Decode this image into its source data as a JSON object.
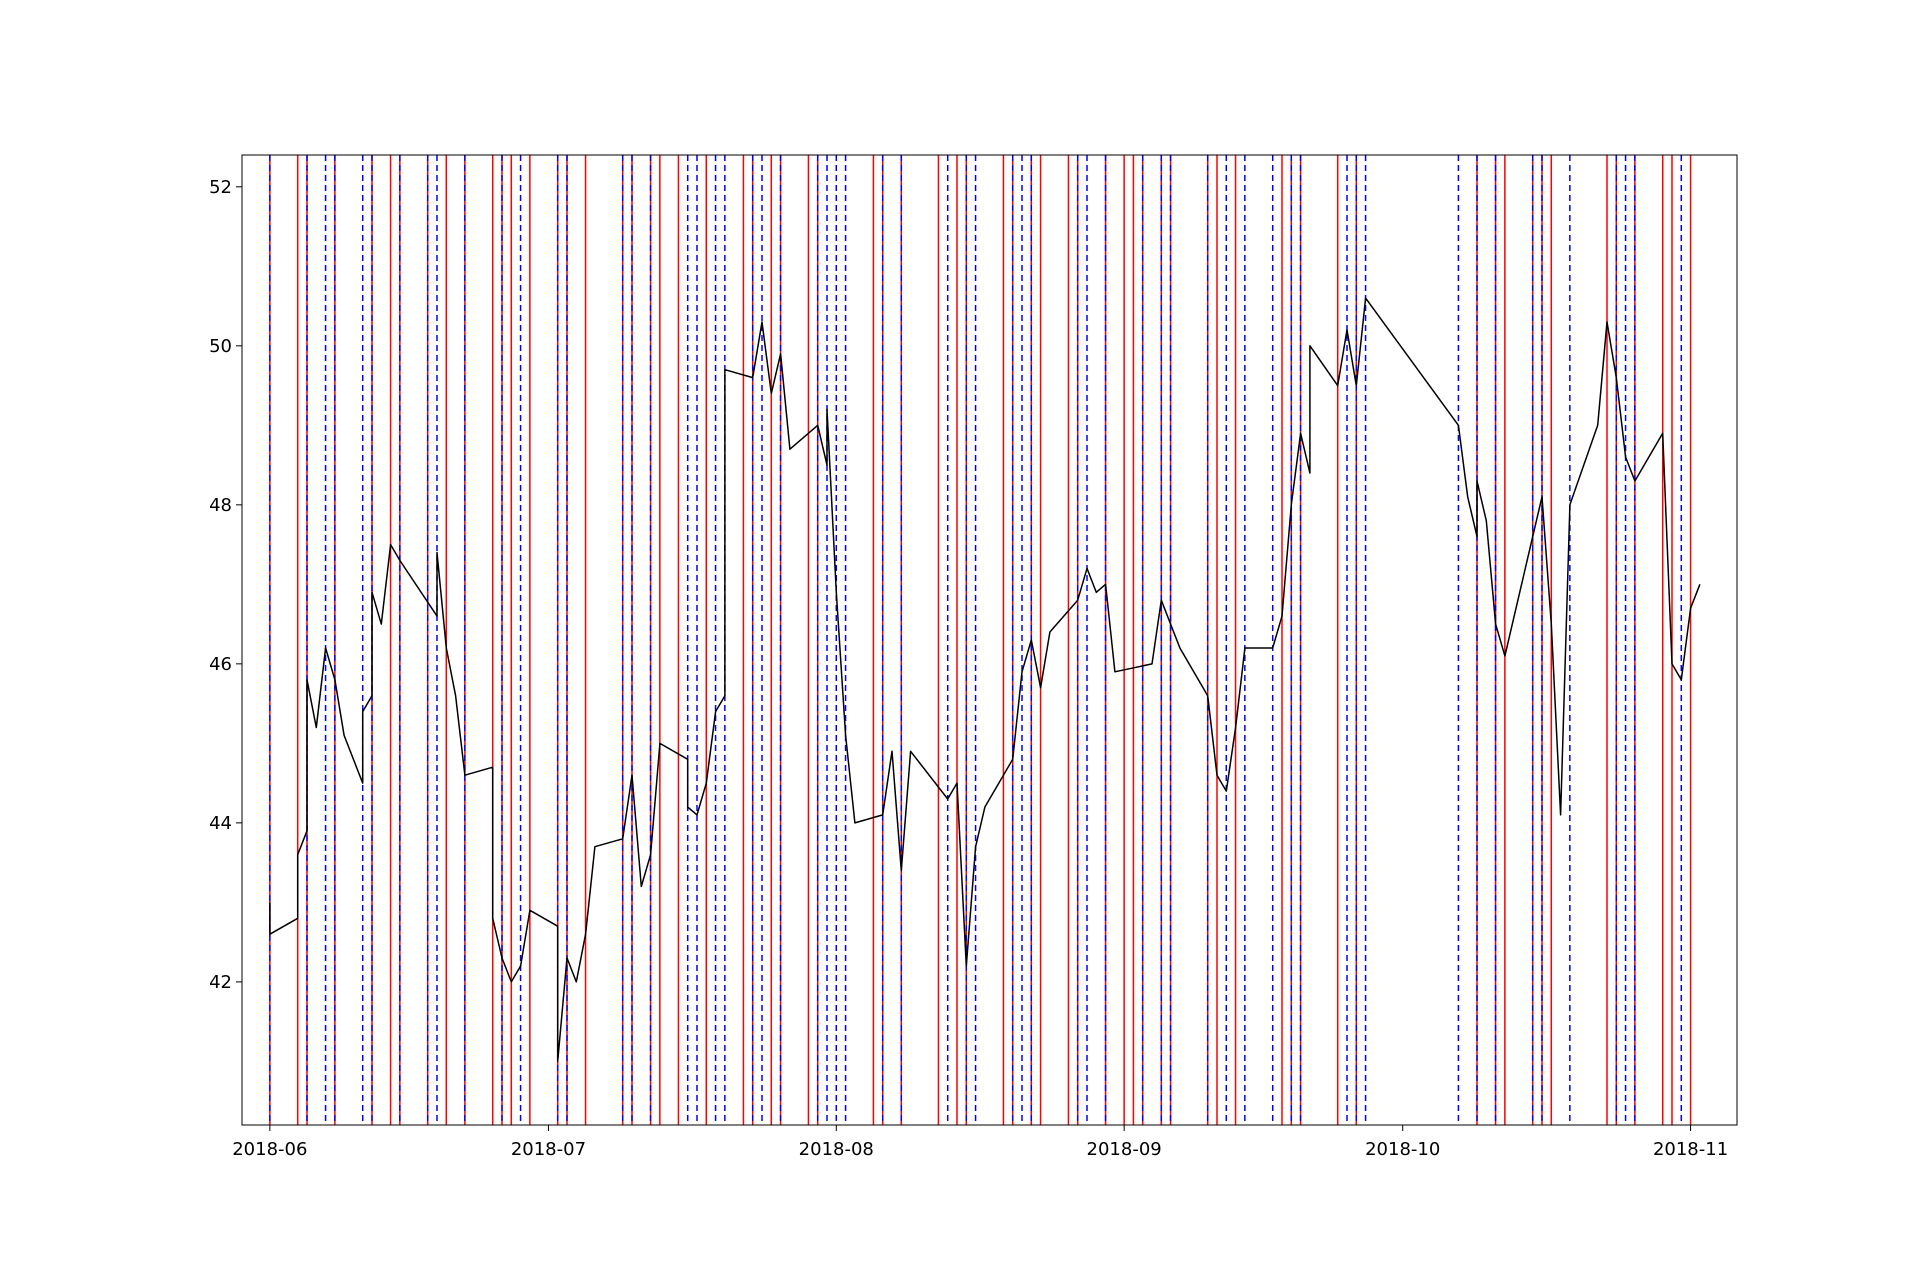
{
  "chart_data": {
    "type": "line",
    "title": "",
    "xlabel": "",
    "ylabel": "",
    "xlim": [
      "2018-05-29",
      "2018-11-06"
    ],
    "ylim": [
      40.2,
      52.4
    ],
    "grid": false,
    "colors": {
      "price": "#000000",
      "solid_lines": "#ff0000",
      "dashed_lines": "#0000ff"
    },
    "x_ticks": [
      {
        "date": "2018-06-01",
        "label": "2018-06"
      },
      {
        "date": "2018-07-01",
        "label": "2018-07"
      },
      {
        "date": "2018-08-01",
        "label": "2018-08"
      },
      {
        "date": "2018-09-01",
        "label": "2018-09"
      },
      {
        "date": "2018-10-01",
        "label": "2018-10"
      },
      {
        "date": "2018-11-01",
        "label": "2018-11"
      }
    ],
    "y_ticks": [
      {
        "value": 42,
        "label": "42"
      },
      {
        "value": 44,
        "label": "44"
      },
      {
        "value": 46,
        "label": "46"
      },
      {
        "value": 48,
        "label": "48"
      },
      {
        "value": 50,
        "label": "50"
      },
      {
        "value": 52,
        "label": "52"
      }
    ],
    "series": [
      {
        "style": "line",
        "points": [
          [
            "2018-06-01",
            43.0
          ],
          [
            "2018-06-01",
            42.6
          ],
          [
            "2018-06-04",
            42.8
          ],
          [
            "2018-06-04",
            43.6
          ],
          [
            "2018-06-05",
            43.9
          ],
          [
            "2018-06-05",
            45.8
          ],
          [
            "2018-06-06",
            45.2
          ],
          [
            "2018-06-07",
            46.2
          ],
          [
            "2018-06-08",
            45.8
          ],
          [
            "2018-06-09",
            45.1
          ],
          [
            "2018-06-11",
            44.5
          ],
          [
            "2018-06-11",
            45.4
          ],
          [
            "2018-06-12",
            45.6
          ],
          [
            "2018-06-12",
            46.9
          ],
          [
            "2018-06-13",
            46.5
          ],
          [
            "2018-06-14",
            47.5
          ],
          [
            "2018-06-15",
            47.3
          ],
          [
            "2018-06-19",
            46.6
          ],
          [
            "2018-06-19",
            47.4
          ],
          [
            "2018-06-20",
            46.2
          ],
          [
            "2018-06-21",
            45.6
          ],
          [
            "2018-06-22",
            44.6
          ],
          [
            "2018-06-25",
            44.7
          ],
          [
            "2018-06-25",
            42.8
          ],
          [
            "2018-06-26",
            42.3
          ],
          [
            "2018-06-27",
            42.0
          ],
          [
            "2018-06-28",
            42.2
          ],
          [
            "2018-06-29",
            42.9
          ],
          [
            "2018-07-02",
            42.7
          ],
          [
            "2018-07-02",
            41.0
          ],
          [
            "2018-07-03",
            42.3
          ],
          [
            "2018-07-04",
            42.0
          ],
          [
            "2018-07-05",
            42.6
          ],
          [
            "2018-07-06",
            43.7
          ],
          [
            "2018-07-09",
            43.8
          ],
          [
            "2018-07-10",
            44.6
          ],
          [
            "2018-07-11",
            43.2
          ],
          [
            "2018-07-12",
            43.6
          ],
          [
            "2018-07-13",
            45.0
          ],
          [
            "2018-07-16",
            44.8
          ],
          [
            "2018-07-16",
            44.2
          ],
          [
            "2018-07-17",
            44.1
          ],
          [
            "2018-07-18",
            44.5
          ],
          [
            "2018-07-19",
            45.4
          ],
          [
            "2018-07-20",
            45.6
          ],
          [
            "2018-07-20",
            49.7
          ],
          [
            "2018-07-23",
            49.6
          ],
          [
            "2018-07-24",
            50.3
          ],
          [
            "2018-07-25",
            49.4
          ],
          [
            "2018-07-26",
            49.9
          ],
          [
            "2018-07-27",
            48.7
          ],
          [
            "2018-07-30",
            49.0
          ],
          [
            "2018-07-31",
            48.5
          ],
          [
            "2018-07-31",
            49.2
          ],
          [
            "2018-08-01",
            46.9
          ],
          [
            "2018-08-02",
            45.1
          ],
          [
            "2018-08-03",
            44.0
          ],
          [
            "2018-08-06",
            44.1
          ],
          [
            "2018-08-07",
            44.9
          ],
          [
            "2018-08-08",
            43.4
          ],
          [
            "2018-08-09",
            44.9
          ],
          [
            "2018-08-13",
            44.3
          ],
          [
            "2018-08-14",
            44.5
          ],
          [
            "2018-08-15",
            42.2
          ],
          [
            "2018-08-16",
            43.7
          ],
          [
            "2018-08-17",
            44.2
          ],
          [
            "2018-08-20",
            44.8
          ],
          [
            "2018-08-21",
            45.9
          ],
          [
            "2018-08-22",
            46.3
          ],
          [
            "2018-08-23",
            45.7
          ],
          [
            "2018-08-24",
            46.4
          ],
          [
            "2018-08-27",
            46.8
          ],
          [
            "2018-08-28",
            47.2
          ],
          [
            "2018-08-29",
            46.9
          ],
          [
            "2018-08-30",
            47.0
          ],
          [
            "2018-08-31",
            45.9
          ],
          [
            "2018-09-04",
            46.0
          ],
          [
            "2018-09-05",
            46.8
          ],
          [
            "2018-09-06",
            46.5
          ],
          [
            "2018-09-07",
            46.2
          ],
          [
            "2018-09-10",
            45.6
          ],
          [
            "2018-09-11",
            44.6
          ],
          [
            "2018-09-12",
            44.4
          ],
          [
            "2018-09-13",
            45.2
          ],
          [
            "2018-09-14",
            46.2
          ],
          [
            "2018-09-17",
            46.2
          ],
          [
            "2018-09-18",
            46.6
          ],
          [
            "2018-09-19",
            48.0
          ],
          [
            "2018-09-20",
            48.9
          ],
          [
            "2018-09-21",
            48.4
          ],
          [
            "2018-09-21",
            50.0
          ],
          [
            "2018-09-24",
            49.5
          ],
          [
            "2018-09-25",
            50.2
          ],
          [
            "2018-09-26",
            49.5
          ],
          [
            "2018-09-27",
            50.6
          ],
          [
            "2018-10-07",
            49.0
          ],
          [
            "2018-10-08",
            48.1
          ],
          [
            "2018-10-09",
            47.6
          ],
          [
            "2018-10-09",
            48.3
          ],
          [
            "2018-10-10",
            47.8
          ],
          [
            "2018-10-11",
            46.5
          ],
          [
            "2018-10-12",
            46.1
          ],
          [
            "2018-10-15",
            47.6
          ],
          [
            "2018-10-16",
            48.1
          ],
          [
            "2018-10-17",
            46.5
          ],
          [
            "2018-10-18",
            44.1
          ],
          [
            "2018-10-19",
            48.0
          ],
          [
            "2018-10-22",
            49.0
          ],
          [
            "2018-10-23",
            50.3
          ],
          [
            "2018-10-24",
            49.6
          ],
          [
            "2018-10-25",
            48.6
          ],
          [
            "2018-10-26",
            48.3
          ],
          [
            "2018-10-29",
            48.9
          ],
          [
            "2018-10-30",
            46.0
          ],
          [
            "2018-10-31",
            45.8
          ],
          [
            "2018-11-01",
            46.7
          ],
          [
            "2018-11-02",
            47.0
          ]
        ]
      }
    ],
    "vertical_lines_solid_red": [
      "2018-06-01",
      "2018-06-04",
      "2018-06-05",
      "2018-06-08",
      "2018-06-12",
      "2018-06-14",
      "2018-06-15",
      "2018-06-18",
      "2018-06-20",
      "2018-06-22",
      "2018-06-25",
      "2018-06-26",
      "2018-06-27",
      "2018-06-29",
      "2018-07-02",
      "2018-07-03",
      "2018-07-05",
      "2018-07-09",
      "2018-07-10",
      "2018-07-12",
      "2018-07-13",
      "2018-07-15",
      "2018-07-18",
      "2018-07-22",
      "2018-07-23",
      "2018-07-25",
      "2018-07-26",
      "2018-07-29",
      "2018-07-30",
      "2018-08-05",
      "2018-08-06",
      "2018-08-08",
      "2018-08-12",
      "2018-08-14",
      "2018-08-15",
      "2018-08-19",
      "2018-08-20",
      "2018-08-22",
      "2018-08-23",
      "2018-08-26",
      "2018-08-27",
      "2018-08-30",
      "2018-09-01",
      "2018-09-02",
      "2018-09-03",
      "2018-09-05",
      "2018-09-06",
      "2018-09-10",
      "2018-09-11",
      "2018-09-13",
      "2018-09-18",
      "2018-09-19",
      "2018-09-20",
      "2018-09-24",
      "2018-09-26",
      "2018-10-09",
      "2018-10-11",
      "2018-10-12",
      "2018-10-15",
      "2018-10-16",
      "2018-10-17",
      "2018-10-23",
      "2018-10-24",
      "2018-10-26",
      "2018-10-29",
      "2018-10-30",
      "2018-11-01"
    ],
    "vertical_lines_dashed_blue": [
      "2018-06-01",
      "2018-06-05",
      "2018-06-07",
      "2018-06-08",
      "2018-06-11",
      "2018-06-12",
      "2018-06-15",
      "2018-06-18",
      "2018-06-19",
      "2018-06-22",
      "2018-06-26",
      "2018-06-28",
      "2018-07-02",
      "2018-07-03",
      "2018-07-09",
      "2018-07-10",
      "2018-07-12",
      "2018-07-16",
      "2018-07-17",
      "2018-07-19",
      "2018-07-20",
      "2018-07-23",
      "2018-07-24",
      "2018-07-26",
      "2018-07-30",
      "2018-07-31",
      "2018-08-01",
      "2018-08-02",
      "2018-08-06",
      "2018-08-08",
      "2018-08-13",
      "2018-08-15",
      "2018-08-16",
      "2018-08-20",
      "2018-08-21",
      "2018-08-22",
      "2018-08-27",
      "2018-08-28",
      "2018-08-30",
      "2018-09-03",
      "2018-09-05",
      "2018-09-06",
      "2018-09-10",
      "2018-09-12",
      "2018-09-14",
      "2018-09-17",
      "2018-09-19",
      "2018-09-20",
      "2018-09-25",
      "2018-09-26",
      "2018-09-27",
      "2018-10-07",
      "2018-10-09",
      "2018-10-11",
      "2018-10-15",
      "2018-10-16",
      "2018-10-19",
      "2018-10-24",
      "2018-10-25",
      "2018-10-26",
      "2018-10-31"
    ]
  }
}
